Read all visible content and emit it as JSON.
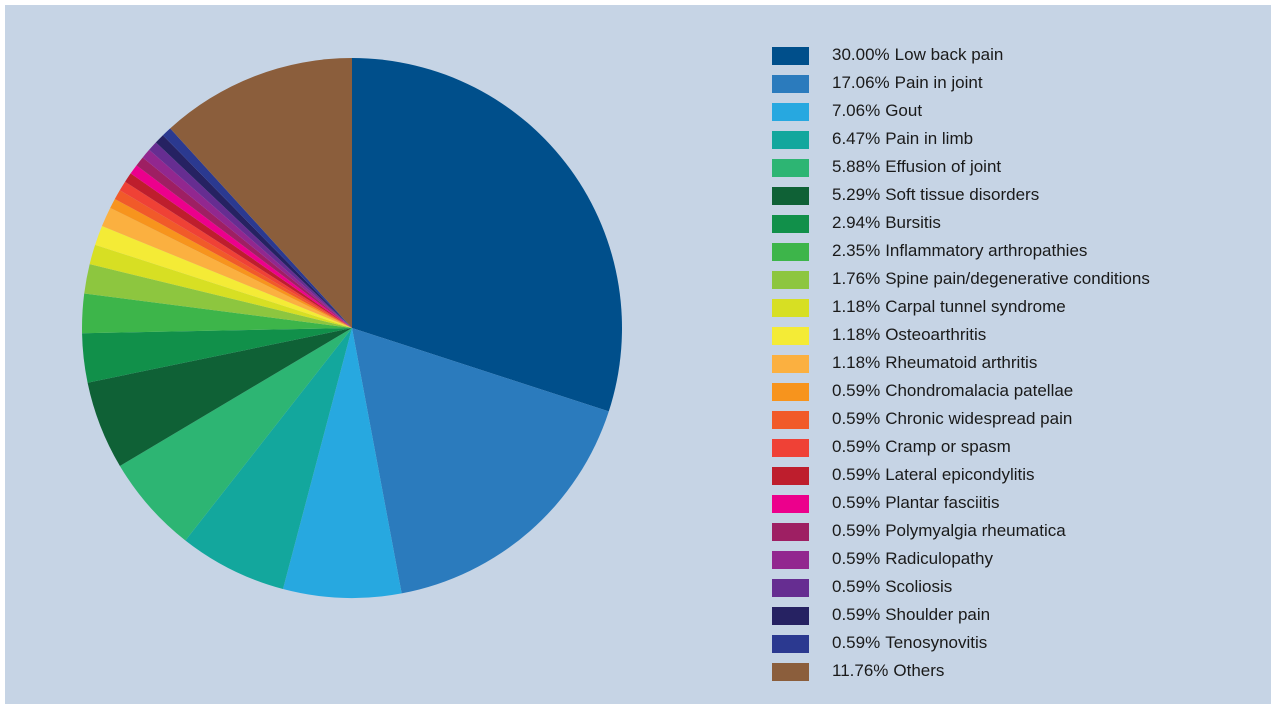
{
  "chart_data": {
    "type": "pie",
    "categories": [
      "Low back pain",
      "Pain in joint",
      "Gout",
      "Pain in limb",
      "Effusion of joint",
      "Soft tissue disorders",
      "Bursitis",
      "Inflammatory arthropathies",
      "Spine pain/degenerative conditions",
      "Carpal tunnel syndrome",
      "Osteoarthritis",
      "Rheumatoid arthritis",
      "Chondromalacia patellae",
      "Chronic widespread pain",
      "Cramp or spasm",
      "Lateral epicondylitis",
      "Plantar fasciitis",
      "Polymyalgia rheumatica",
      "Radiculopathy",
      "Scoliosis",
      "Shoulder pain",
      "Tenosynovitis",
      "Others"
    ],
    "values": [
      30,
      17.06,
      7.06,
      6.47,
      5.88,
      5.29,
      2.94,
      2.35,
      1.76,
      1.18,
      1.18,
      1.18,
      0.59,
      0.59,
      0.59,
      0.59,
      0.59,
      0.59,
      0.59,
      0.59,
      0.59,
      0.59,
      11.76
    ],
    "value_labels": [
      "30.00%",
      "17.06%",
      "7.06%",
      "6.47%",
      "5.88%",
      "5.29%",
      "2.94%",
      "2.35%",
      "1.76%",
      "1.18%",
      "1.18%",
      "1.18%",
      "0.59%",
      "0.59%",
      "0.59%",
      "0.59%",
      "0.59%",
      "0.59%",
      "0.59%",
      "0.59%",
      "0.59%",
      "0.59%",
      "11.76%"
    ],
    "colors": [
      "#004f8b",
      "#2b7bbd",
      "#27a8e0",
      "#13a79d",
      "#2db573",
      "#0f6136",
      "#11904a",
      "#3db54a",
      "#8dc63f",
      "#d7df23",
      "#f4eb36",
      "#fbb040",
      "#f7941d",
      "#f15a29",
      "#ef4136",
      "#be1e2d",
      "#ec008c",
      "#9e1f63",
      "#92278f",
      "#662d91",
      "#262262",
      "#2b3990",
      "#8b5e3c"
    ]
  }
}
